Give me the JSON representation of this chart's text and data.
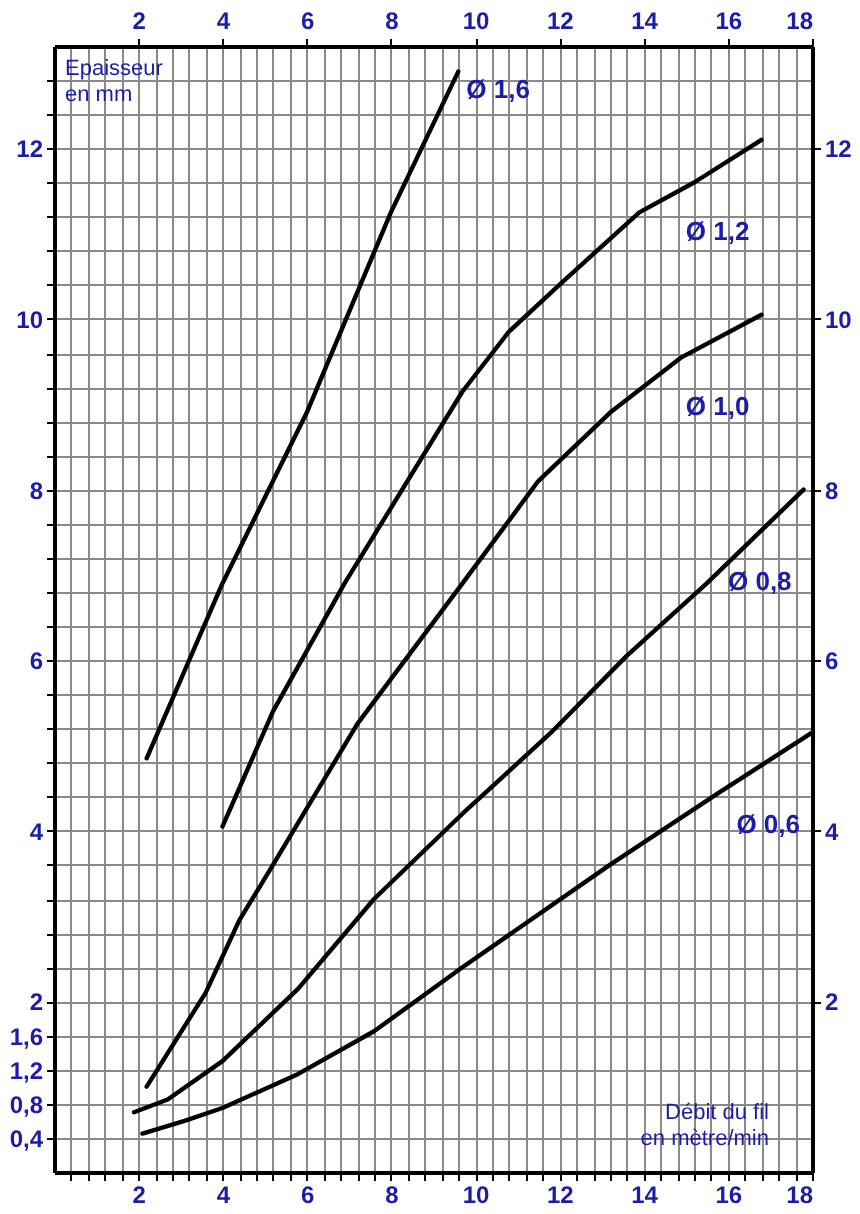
{
  "chart_data": {
    "type": "line",
    "xlabel": "Débit du fil\nen mètre/min",
    "ylabel": "Epaisseur\nen mm",
    "xlim": [
      0,
      18
    ],
    "xticks": [
      {
        "value": 0.4,
        "label": null
      },
      {
        "value": 0.8,
        "label": null
      },
      {
        "value": 1.2,
        "label": null
      },
      {
        "value": 1.6,
        "label": null
      },
      2,
      {
        "value": 2.4,
        "label": null
      },
      {
        "value": 2.8,
        "label": null
      },
      {
        "value": 3.2,
        "label": null
      },
      {
        "value": 3.6,
        "label": null
      },
      4,
      {
        "value": 4.4,
        "label": null
      },
      {
        "value": 4.8,
        "label": null
      },
      {
        "value": 5.2,
        "label": null
      },
      {
        "value": 5.6,
        "label": null
      },
      6,
      {
        "value": 6.4,
        "label": null
      },
      {
        "value": 6.8,
        "label": null
      },
      {
        "value": 7.2,
        "label": null
      },
      {
        "value": 7.6,
        "label": null
      },
      8,
      {
        "value": 8.4,
        "label": null
      },
      {
        "value": 8.8,
        "label": null
      },
      {
        "value": 9.2,
        "label": null
      },
      {
        "value": 9.6,
        "label": null
      },
      10,
      {
        "value": 10.4,
        "label": null
      },
      {
        "value": 10.8,
        "label": null
      },
      {
        "value": 11.2,
        "label": null
      },
      {
        "value": 11.6,
        "label": null
      },
      12,
      {
        "value": 12.4,
        "label": null
      },
      {
        "value": 12.8,
        "label": null
      },
      {
        "value": 13.2,
        "label": null
      },
      {
        "value": 13.6,
        "label": null
      },
      14,
      {
        "value": 14.4,
        "label": null
      },
      {
        "value": 14.8,
        "label": null
      },
      {
        "value": 15.2,
        "label": null
      },
      {
        "value": 15.6,
        "label": null
      },
      16,
      {
        "value": 16.4,
        "label": null
      },
      {
        "value": 16.8,
        "label": null
      },
      {
        "value": 17.2,
        "label": null
      },
      {
        "value": 17.6,
        "label": null
      },
      18
    ],
    "x2lim": [
      0,
      18
    ],
    "x2ticks": [
      2,
      4,
      6,
      8,
      10,
      12,
      14,
      16,
      18
    ],
    "ylim": [
      0,
      13.2
    ],
    "yticks": [
      {
        "value": 0.4,
        "label": "0,4"
      },
      {
        "value": 0.8,
        "label": "0,8"
      },
      {
        "value": 1.2,
        "label": "1,2"
      },
      {
        "value": 1.6,
        "label": "1,6"
      },
      2,
      {
        "value": 2.4,
        "label": null
      },
      {
        "value": 2.8,
        "label": null
      },
      {
        "value": 3.2,
        "label": null
      },
      {
        "value": 3.6,
        "label": null
      },
      4,
      {
        "value": 4.4,
        "label": null
      },
      {
        "value": 4.8,
        "label": null
      },
      {
        "value": 5.2,
        "label": null
      },
      {
        "value": 5.6,
        "label": null
      },
      6,
      {
        "value": 6.4,
        "label": null
      },
      {
        "value": 6.8,
        "label": null
      },
      {
        "value": 7.2,
        "label": null
      },
      {
        "value": 7.6,
        "label": null
      },
      8,
      {
        "value": 8.4,
        "label": null
      },
      {
        "value": 8.8,
        "label": null
      },
      {
        "value": 9.2,
        "label": null
      },
      {
        "value": 9.6,
        "label": null
      },
      10,
      {
        "value": 10.4,
        "label": null
      },
      {
        "value": 10.8,
        "label": null
      },
      {
        "value": 11.2,
        "label": null
      },
      {
        "value": 11.6,
        "label": null
      },
      12,
      {
        "value": 12.4,
        "label": null
      },
      {
        "value": 12.8,
        "label": null
      }
    ],
    "y2lim": [
      0,
      13.2
    ],
    "y2ticks": [
      2,
      4,
      6,
      8,
      10,
      12
    ],
    "grid": true,
    "legend": false,
    "marker": "none",
    "line_style": "solid",
    "series": [
      {
        "name": "Ø 0,6",
        "color": "#000000",
        "x": [
          2.1,
          3.1,
          4.0,
          5.8,
          7.6,
          9.7,
          13.2,
          15.8,
          18.0
        ],
        "values": [
          0.45,
          0.6,
          0.75,
          1.15,
          1.65,
          2.4,
          3.6,
          4.45,
          5.15
        ]
      },
      {
        "name": "Ø 0,8",
        "color": "#000000",
        "x": [
          1.9,
          2.7,
          4.0,
          5.8,
          7.6,
          9.7,
          11.8,
          13.6,
          15.5,
          17.8
        ],
        "values": [
          0.7,
          0.85,
          1.3,
          2.15,
          3.2,
          4.2,
          5.15,
          6.05,
          6.9,
          8.0
        ]
      },
      {
        "name": "Ø 1,0",
        "color": "#000000",
        "x": [
          2.2,
          3.6,
          4.4,
          5.2,
          7.2,
          9.7,
          11.5,
          13.2,
          14.9,
          16.8
        ],
        "values": [
          1.0,
          2.1,
          2.95,
          3.6,
          5.25,
          6.9,
          8.1,
          8.9,
          9.55,
          10.05
        ]
      },
      {
        "name": "Ø 1,2",
        "color": "#000000",
        "x": [
          4.0,
          5.2,
          6.9,
          9.7,
          10.8,
          12.0,
          13.9,
          15.2,
          16.8
        ],
        "values": [
          4.05,
          5.4,
          6.9,
          9.15,
          9.85,
          10.4,
          11.25,
          11.6,
          12.1
        ]
      },
      {
        "name": "Ø 1,6",
        "color": "#000000",
        "x": [
          2.2,
          4.0,
          6.0,
          8.0,
          9.6
        ],
        "values": [
          4.85,
          6.9,
          8.9,
          11.25,
          12.9
        ]
      }
    ]
  }
}
